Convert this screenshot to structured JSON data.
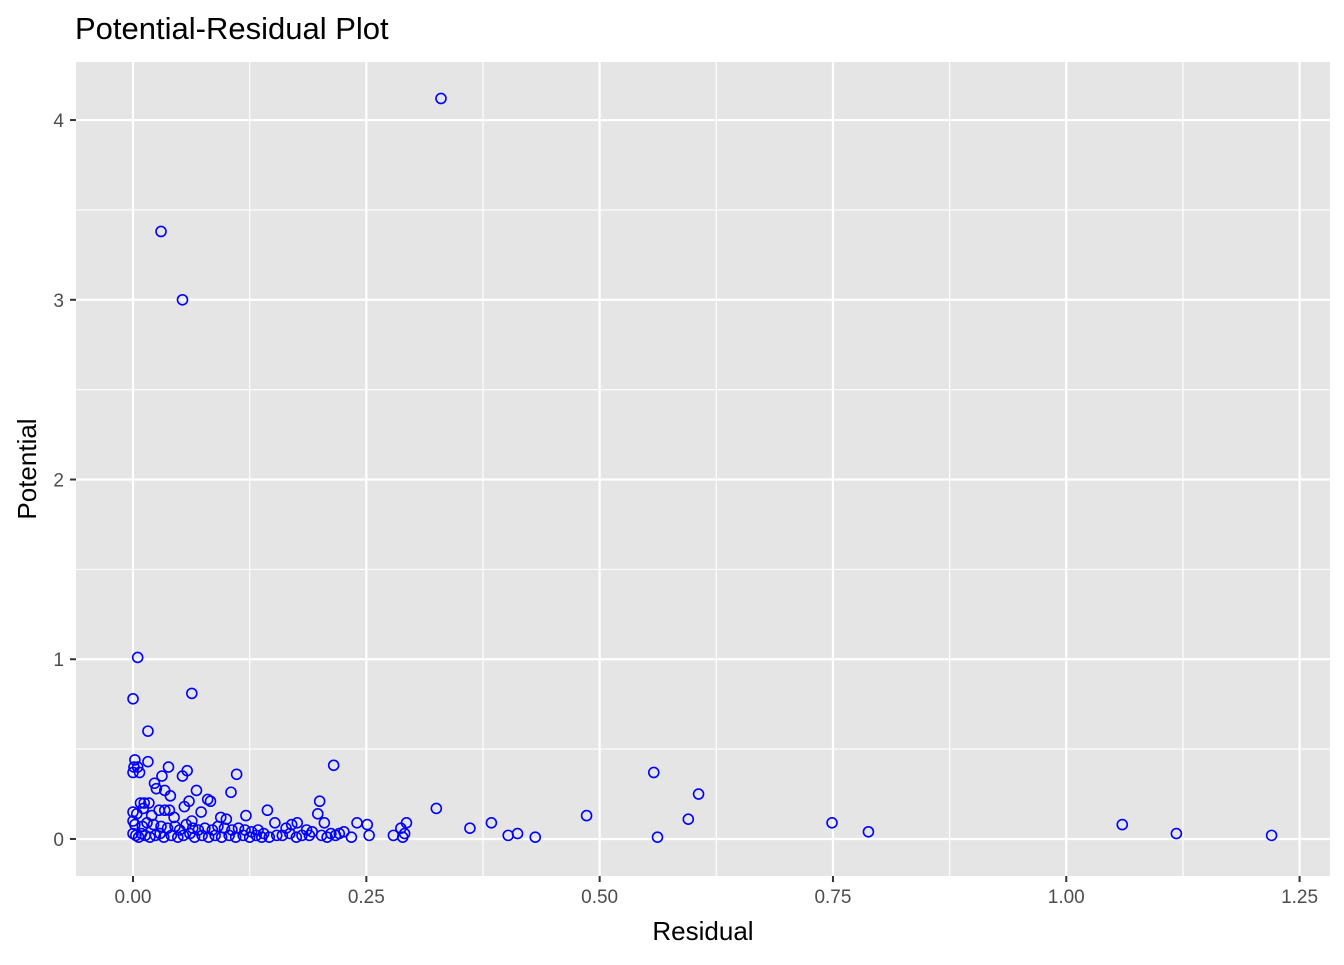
{
  "chart_data": {
    "type": "scatter",
    "title": "Potential-Residual Plot",
    "xlabel": "Residual",
    "ylabel": "Potential",
    "xlim": [
      -0.0611,
      1.2826
    ],
    "ylim": [
      -0.206,
      4.323
    ],
    "x_ticks": [
      0,
      0.25,
      0.5,
      0.75,
      1.0,
      1.25
    ],
    "x_tick_labels": [
      "0.00",
      "0.25",
      "0.50",
      "0.75",
      "1.00",
      "1.25"
    ],
    "y_ticks": [
      0,
      1,
      2,
      3,
      4
    ],
    "y_tick_labels": [
      "0",
      "1",
      "2",
      "3",
      "4"
    ],
    "grid": true,
    "panel_background": "#e5e5e5",
    "grid_color": "#ffffff",
    "point_color": "#0000ff",
    "point_shape": "open-circle",
    "series": [
      {
        "points": [
          [
            0.33,
            4.12
          ],
          [
            0.03,
            3.38
          ],
          [
            0.053,
            3.0
          ],
          [
            0.005,
            1.01
          ],
          [
            0.0,
            0.78
          ],
          [
            0.063,
            0.81
          ],
          [
            0.016,
            0.6
          ],
          [
            0.002,
            0.44
          ],
          [
            0.016,
            0.43
          ],
          [
            0.001,
            0.4
          ],
          [
            0.005,
            0.4
          ],
          [
            0.0,
            0.37
          ],
          [
            0.007,
            0.37
          ],
          [
            0.038,
            0.4
          ],
          [
            0.031,
            0.35
          ],
          [
            0.053,
            0.35
          ],
          [
            0.058,
            0.38
          ],
          [
            0.111,
            0.36
          ],
          [
            0.215,
            0.41
          ],
          [
            0.558,
            0.37
          ],
          [
            0.023,
            0.31
          ],
          [
            0.025,
            0.28
          ],
          [
            0.034,
            0.27
          ],
          [
            0.04,
            0.24
          ],
          [
            0.068,
            0.27
          ],
          [
            0.105,
            0.26
          ],
          [
            0.06,
            0.21
          ],
          [
            0.055,
            0.18
          ],
          [
            0.08,
            0.22
          ],
          [
            0.083,
            0.21
          ],
          [
            0.073,
            0.15
          ],
          [
            0.2,
            0.21
          ],
          [
            0.606,
            0.25
          ],
          [
            0.008,
            0.2
          ],
          [
            0.012,
            0.2
          ],
          [
            0.017,
            0.2
          ],
          [
            0.011,
            0.17
          ],
          [
            0.0,
            0.15
          ],
          [
            0.004,
            0.14
          ],
          [
            0.02,
            0.13
          ],
          [
            0.028,
            0.16
          ],
          [
            0.034,
            0.16
          ],
          [
            0.039,
            0.16
          ],
          [
            0.044,
            0.12
          ],
          [
            0.063,
            0.1
          ],
          [
            0.094,
            0.12
          ],
          [
            0.1,
            0.11
          ],
          [
            0.121,
            0.13
          ],
          [
            0.144,
            0.16
          ],
          [
            0.198,
            0.14
          ],
          [
            0.325,
            0.17
          ],
          [
            0.486,
            0.13
          ],
          [
            0.595,
            0.11
          ],
          [
            0.749,
            0.09
          ],
          [
            1.06,
            0.08
          ],
          [
            0.0,
            0.1
          ],
          [
            0.002,
            0.08
          ],
          [
            0.01,
            0.07
          ],
          [
            0.015,
            0.09
          ],
          [
            0.022,
            0.08
          ],
          [
            0.03,
            0.07
          ],
          [
            0.037,
            0.06
          ],
          [
            0.045,
            0.07
          ],
          [
            0.05,
            0.05
          ],
          [
            0.057,
            0.08
          ],
          [
            0.064,
            0.06
          ],
          [
            0.07,
            0.05
          ],
          [
            0.077,
            0.06
          ],
          [
            0.085,
            0.05
          ],
          [
            0.091,
            0.07
          ],
          [
            0.098,
            0.06
          ],
          [
            0.106,
            0.05
          ],
          [
            0.113,
            0.06
          ],
          [
            0.12,
            0.05
          ],
          [
            0.127,
            0.04
          ],
          [
            0.134,
            0.05
          ],
          [
            0.14,
            0.03
          ],
          [
            0.152,
            0.09
          ],
          [
            0.164,
            0.06
          ],
          [
            0.17,
            0.08
          ],
          [
            0.176,
            0.09
          ],
          [
            0.186,
            0.05
          ],
          [
            0.192,
            0.04
          ],
          [
            0.205,
            0.09
          ],
          [
            0.212,
            0.03
          ],
          [
            0.221,
            0.03
          ],
          [
            0.226,
            0.04
          ],
          [
            0.24,
            0.09
          ],
          [
            0.251,
            0.08
          ],
          [
            0.293,
            0.09
          ],
          [
            0.287,
            0.06
          ],
          [
            0.361,
            0.06
          ],
          [
            0.384,
            0.09
          ],
          [
            0.788,
            0.04
          ],
          [
            1.118,
            0.03
          ],
          [
            0.0,
            0.03
          ],
          [
            0.003,
            0.02
          ],
          [
            0.006,
            0.01
          ],
          [
            0.009,
            0.03
          ],
          [
            0.013,
            0.02
          ],
          [
            0.018,
            0.01
          ],
          [
            0.024,
            0.02
          ],
          [
            0.029,
            0.03
          ],
          [
            0.033,
            0.01
          ],
          [
            0.041,
            0.02
          ],
          [
            0.048,
            0.01
          ],
          [
            0.054,
            0.02
          ],
          [
            0.061,
            0.03
          ],
          [
            0.066,
            0.01
          ],
          [
            0.074,
            0.02
          ],
          [
            0.081,
            0.01
          ],
          [
            0.088,
            0.02
          ],
          [
            0.095,
            0.01
          ],
          [
            0.103,
            0.02
          ],
          [
            0.11,
            0.01
          ],
          [
            0.118,
            0.02
          ],
          [
            0.125,
            0.01
          ],
          [
            0.132,
            0.02
          ],
          [
            0.138,
            0.01
          ],
          [
            0.146,
            0.01
          ],
          [
            0.154,
            0.02
          ],
          [
            0.16,
            0.02
          ],
          [
            0.168,
            0.03
          ],
          [
            0.175,
            0.01
          ],
          [
            0.181,
            0.02
          ],
          [
            0.189,
            0.02
          ],
          [
            0.202,
            0.02
          ],
          [
            0.208,
            0.01
          ],
          [
            0.217,
            0.02
          ],
          [
            0.234,
            0.01
          ],
          [
            0.253,
            0.02
          ],
          [
            0.279,
            0.02
          ],
          [
            0.289,
            0.01
          ],
          [
            0.291,
            0.03
          ],
          [
            0.402,
            0.02
          ],
          [
            0.412,
            0.03
          ],
          [
            0.431,
            0.01
          ],
          [
            0.562,
            0.01
          ],
          [
            1.22,
            0.02
          ]
        ]
      }
    ]
  }
}
